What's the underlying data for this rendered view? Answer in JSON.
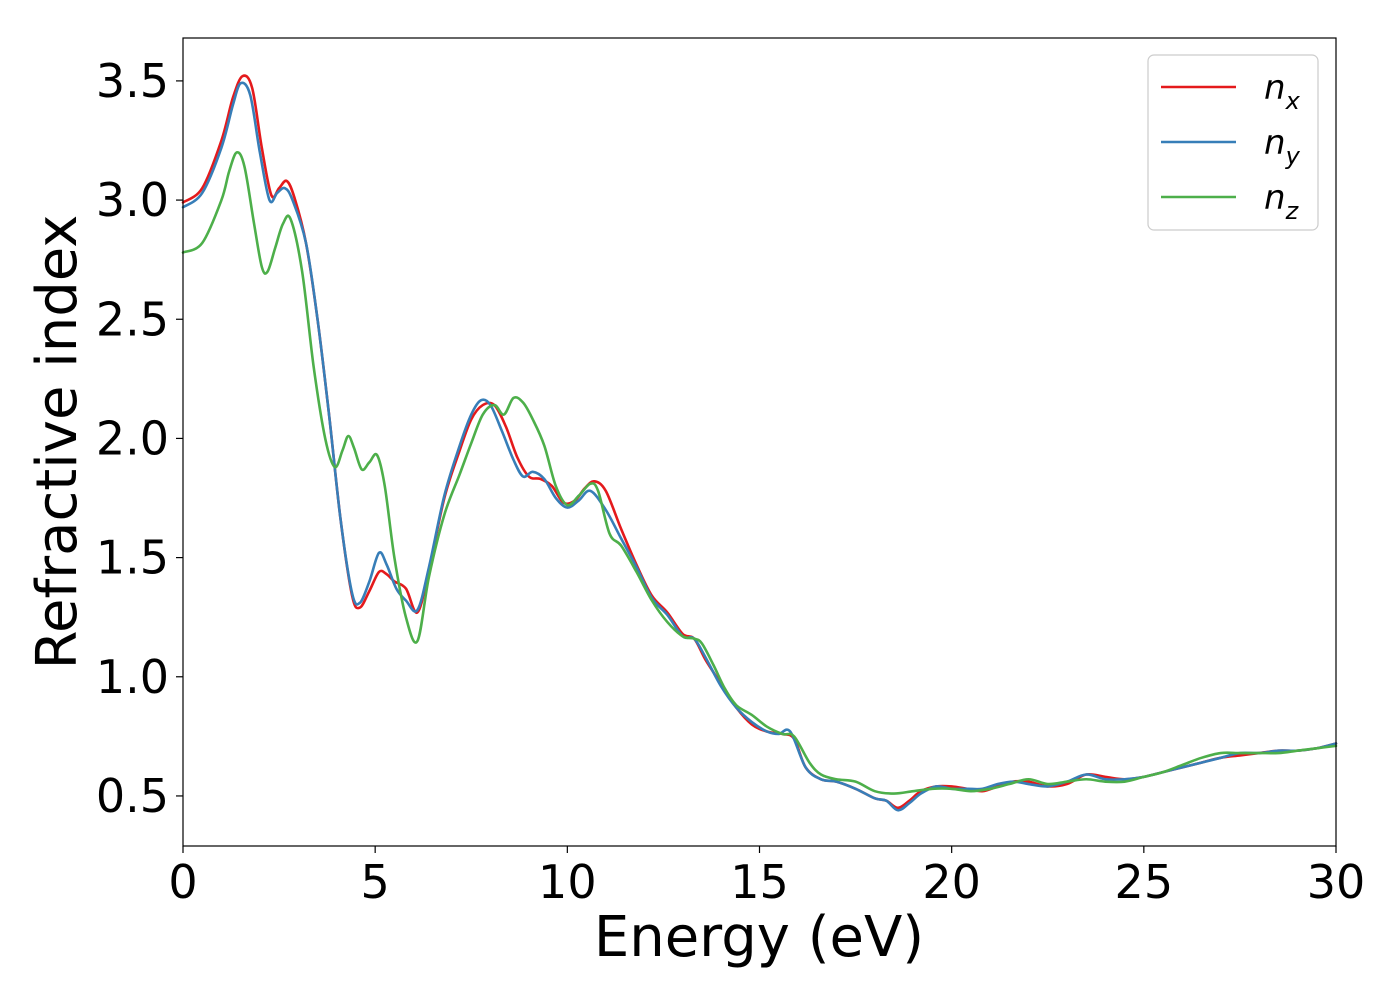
{
  "chart_data": {
    "type": "line",
    "xlabel": "Energy (eV)",
    "ylabel": "Refractive index",
    "xlim": [
      0,
      30
    ],
    "ylim": [
      0.29,
      3.68
    ],
    "xticks": [
      0,
      5,
      10,
      15,
      20,
      25,
      30
    ],
    "xtick_labels": [
      "0",
      "5",
      "10",
      "15",
      "20",
      "25",
      "30"
    ],
    "yticks": [
      0.5,
      1.0,
      1.5,
      2.0,
      2.5,
      3.0,
      3.5
    ],
    "ytick_labels": [
      "0.5",
      "1.0",
      "1.5",
      "2.0",
      "2.5",
      "3.0",
      "3.5"
    ],
    "grid": false,
    "legend_position": "top-right",
    "series": [
      {
        "name": "n",
        "subscript": "x",
        "color": "#e41a1c",
        "x": [
          0,
          0.5,
          1.0,
          1.3,
          1.55,
          1.8,
          2.05,
          2.3,
          2.5,
          2.7,
          2.9,
          3.2,
          3.5,
          3.8,
          4.1,
          4.4,
          4.6,
          4.85,
          5.1,
          5.3,
          5.5,
          5.8,
          6.1,
          6.4,
          6.8,
          7.2,
          7.5,
          7.8,
          8.1,
          8.4,
          8.7,
          9.0,
          9.3,
          9.6,
          9.9,
          10.2,
          10.45,
          10.7,
          11.0,
          11.4,
          11.8,
          12.2,
          12.6,
          13.0,
          13.3,
          13.6,
          14.0,
          14.4,
          14.8,
          15.2,
          15.6,
          15.9,
          16.2,
          16.6,
          17.0,
          17.5,
          18.0,
          18.3,
          18.6,
          18.9,
          19.2,
          19.6,
          20.0,
          20.4,
          20.8,
          21.2,
          21.6,
          22.0,
          22.5,
          23.0,
          23.5,
          24.0,
          24.5,
          25.0,
          25.5,
          26.0,
          26.5,
          27.0,
          27.5,
          28.0,
          28.5,
          29.0,
          29.5,
          30.0
        ],
        "values": [
          2.99,
          3.05,
          3.25,
          3.43,
          3.52,
          3.47,
          3.22,
          3.02,
          3.05,
          3.08,
          3.01,
          2.82,
          2.5,
          2.1,
          1.66,
          1.34,
          1.29,
          1.36,
          1.44,
          1.43,
          1.4,
          1.37,
          1.27,
          1.45,
          1.75,
          1.95,
          2.08,
          2.14,
          2.14,
          2.05,
          1.92,
          1.84,
          1.83,
          1.8,
          1.73,
          1.74,
          1.79,
          1.82,
          1.78,
          1.62,
          1.47,
          1.34,
          1.27,
          1.18,
          1.16,
          1.07,
          0.97,
          0.87,
          0.8,
          0.77,
          0.76,
          0.74,
          0.62,
          0.57,
          0.56,
          0.53,
          0.49,
          0.48,
          0.45,
          0.48,
          0.52,
          0.54,
          0.54,
          0.53,
          0.52,
          0.54,
          0.56,
          0.56,
          0.54,
          0.55,
          0.59,
          0.58,
          0.57,
          0.58,
          0.6,
          0.62,
          0.64,
          0.66,
          0.67,
          0.68,
          0.69,
          0.69,
          0.7,
          0.72
        ]
      },
      {
        "name": "n",
        "subscript": "y",
        "color": "#377eb8",
        "x": [
          0,
          0.5,
          1.0,
          1.3,
          1.5,
          1.75,
          2.0,
          2.25,
          2.45,
          2.65,
          2.85,
          3.2,
          3.5,
          3.8,
          4.1,
          4.4,
          4.6,
          4.85,
          5.1,
          5.3,
          5.55,
          5.8,
          6.1,
          6.4,
          6.8,
          7.2,
          7.5,
          7.75,
          8.0,
          8.3,
          8.6,
          8.85,
          9.1,
          9.4,
          9.7,
          10.0,
          10.3,
          10.6,
          11.0,
          11.4,
          11.8,
          12.2,
          12.6,
          13.0,
          13.3,
          13.6,
          14.0,
          14.4,
          14.8,
          15.2,
          15.5,
          15.8,
          16.2,
          16.6,
          17.0,
          17.5,
          18.0,
          18.3,
          18.6,
          18.9,
          19.2,
          19.6,
          20.0,
          20.4,
          20.8,
          21.2,
          21.6,
          22.0,
          22.5,
          23.0,
          23.5,
          24.0,
          24.5,
          25.0,
          25.5,
          26.0,
          26.5,
          27.0,
          27.5,
          28.0,
          28.5,
          29.0,
          29.5,
          30.0
        ],
        "values": [
          2.97,
          3.03,
          3.22,
          3.4,
          3.49,
          3.44,
          3.2,
          3.0,
          3.03,
          3.05,
          3.0,
          2.82,
          2.5,
          2.1,
          1.66,
          1.35,
          1.31,
          1.4,
          1.52,
          1.47,
          1.37,
          1.32,
          1.28,
          1.46,
          1.76,
          1.97,
          2.1,
          2.16,
          2.14,
          2.03,
          1.91,
          1.84,
          1.86,
          1.83,
          1.75,
          1.71,
          1.74,
          1.78,
          1.7,
          1.58,
          1.46,
          1.33,
          1.26,
          1.17,
          1.16,
          1.08,
          0.96,
          0.87,
          0.81,
          0.77,
          0.76,
          0.77,
          0.62,
          0.57,
          0.56,
          0.53,
          0.49,
          0.48,
          0.44,
          0.47,
          0.51,
          0.54,
          0.53,
          0.53,
          0.53,
          0.55,
          0.56,
          0.55,
          0.54,
          0.56,
          0.59,
          0.57,
          0.57,
          0.58,
          0.6,
          0.62,
          0.64,
          0.66,
          0.68,
          0.68,
          0.69,
          0.69,
          0.7,
          0.72
        ]
      },
      {
        "name": "n",
        "subscript": "z",
        "color": "#4daf4a",
        "x": [
          0,
          0.5,
          1.0,
          1.2,
          1.4,
          1.6,
          1.85,
          2.05,
          2.2,
          2.4,
          2.6,
          2.8,
          3.1,
          3.4,
          3.7,
          3.95,
          4.15,
          4.3,
          4.45,
          4.65,
          4.85,
          5.05,
          5.25,
          5.5,
          5.8,
          6.1,
          6.4,
          6.8,
          7.2,
          7.5,
          7.8,
          8.1,
          8.35,
          8.6,
          8.85,
          9.1,
          9.4,
          9.7,
          10.0,
          10.3,
          10.6,
          10.8,
          11.1,
          11.4,
          11.8,
          12.2,
          12.6,
          13.0,
          13.3,
          13.5,
          13.8,
          14.1,
          14.4,
          14.8,
          15.2,
          15.6,
          15.9,
          16.3,
          16.6,
          17.0,
          17.5,
          18.0,
          18.5,
          19.0,
          19.5,
          20.0,
          20.5,
          21.0,
          21.5,
          22.0,
          22.5,
          23.0,
          23.5,
          24.0,
          24.5,
          25.0,
          25.5,
          26.0,
          26.5,
          27.0,
          27.5,
          28.0,
          28.5,
          29.0,
          29.5,
          30.0
        ],
        "values": [
          2.78,
          2.82,
          3.0,
          3.12,
          3.2,
          3.14,
          2.9,
          2.72,
          2.7,
          2.8,
          2.9,
          2.92,
          2.7,
          2.3,
          2.0,
          1.88,
          1.95,
          2.01,
          1.96,
          1.87,
          1.9,
          1.93,
          1.8,
          1.5,
          1.25,
          1.15,
          1.42,
          1.68,
          1.85,
          1.98,
          2.1,
          2.14,
          2.1,
          2.17,
          2.15,
          2.08,
          1.97,
          1.8,
          1.72,
          1.76,
          1.81,
          1.78,
          1.6,
          1.55,
          1.44,
          1.32,
          1.23,
          1.17,
          1.16,
          1.14,
          1.05,
          0.95,
          0.88,
          0.84,
          0.79,
          0.76,
          0.75,
          0.64,
          0.59,
          0.57,
          0.56,
          0.52,
          0.51,
          0.52,
          0.53,
          0.53,
          0.52,
          0.53,
          0.55,
          0.57,
          0.55,
          0.56,
          0.57,
          0.56,
          0.56,
          0.58,
          0.6,
          0.63,
          0.66,
          0.68,
          0.68,
          0.68,
          0.68,
          0.69,
          0.7,
          0.71
        ]
      }
    ]
  }
}
